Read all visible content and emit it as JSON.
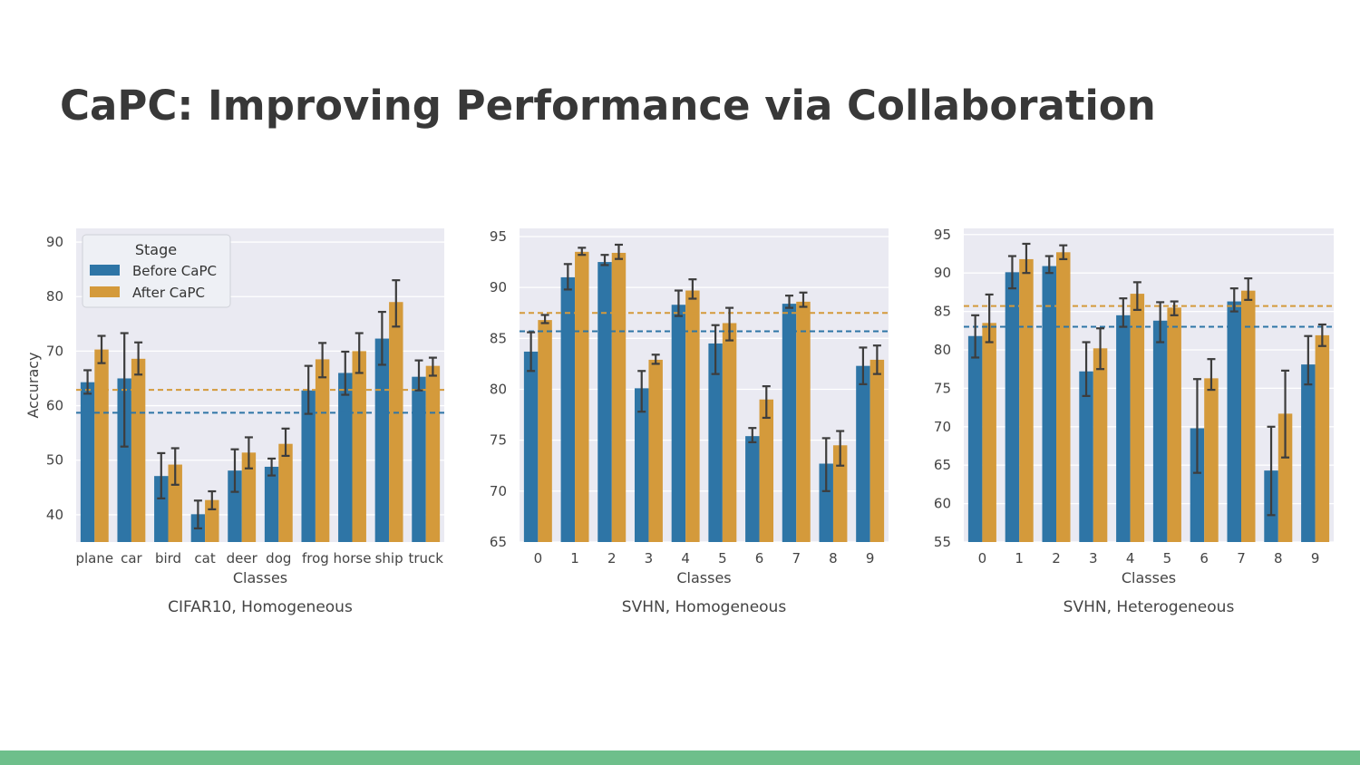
{
  "slide": {
    "title": "CaPC: Improving Performance via Collaboration",
    "footer_color": "#6ebf8b"
  },
  "colors": {
    "before": "#2e75a6",
    "after": "#d49a3b",
    "plot_bg": "#eaeaf2",
    "error_bar": "#3d3d3d"
  },
  "legend": {
    "title": "Stage",
    "entries": [
      "Before CaPC",
      "After CaPC"
    ]
  },
  "chart_data": [
    {
      "type": "bar",
      "caption": "CIFAR10, Homogeneous",
      "xlabel": "Classes",
      "ylabel": "Accuracy",
      "ylim": [
        35,
        92.5
      ],
      "yticks": [
        40,
        50,
        60,
        70,
        80,
        90
      ],
      "categories": [
        "plane",
        "car",
        "bird",
        "cat",
        "deer",
        "dog",
        "frog",
        "horse",
        "ship",
        "truck"
      ],
      "series": [
        {
          "name": "Before CaPC",
          "values": [
            64.3,
            65.0,
            47.1,
            40.1,
            48.1,
            48.8,
            62.8,
            66.0,
            72.3,
            65.3
          ],
          "err_low": [
            62.2,
            52.5,
            43.0,
            37.5,
            44.2,
            47.2,
            58.5,
            62.0,
            67.5,
            62.8
          ],
          "err_high": [
            66.5,
            73.3,
            51.3,
            42.6,
            52.0,
            50.3,
            67.3,
            69.9,
            77.2,
            68.3
          ]
        },
        {
          "name": "After CaPC",
          "values": [
            70.3,
            68.6,
            49.2,
            42.7,
            51.4,
            53.0,
            68.5,
            70.0,
            79.0,
            67.3
          ],
          "err_low": [
            67.8,
            65.7,
            45.5,
            41.0,
            48.5,
            50.8,
            65.2,
            66.0,
            74.5,
            65.5
          ],
          "err_high": [
            72.8,
            71.6,
            52.2,
            44.3,
            54.2,
            55.8,
            71.5,
            73.3,
            83.0,
            68.8
          ]
        }
      ],
      "mean_lines": {
        "Before CaPC": 58.7,
        "After CaPC": 62.9
      },
      "legend_position": "upper-left",
      "grid": true
    },
    {
      "type": "bar",
      "caption": "SVHN, Homogeneous",
      "xlabel": "Classes",
      "ylabel": "",
      "ylim": [
        65,
        95.8
      ],
      "yticks": [
        65,
        70,
        75,
        80,
        85,
        90,
        95
      ],
      "categories": [
        "0",
        "1",
        "2",
        "3",
        "4",
        "5",
        "6",
        "7",
        "8",
        "9"
      ],
      "series": [
        {
          "name": "Before CaPC",
          "values": [
            83.7,
            91.0,
            92.5,
            80.1,
            88.3,
            84.5,
            75.4,
            88.4,
            72.7,
            82.3
          ],
          "err_low": [
            81.8,
            89.8,
            92.2,
            77.8,
            87.2,
            81.5,
            74.8,
            88.0,
            70.0,
            80.5
          ],
          "err_high": [
            85.6,
            92.3,
            93.2,
            81.8,
            89.7,
            86.3,
            76.2,
            89.2,
            75.2,
            84.1
          ]
        },
        {
          "name": "After CaPC",
          "values": [
            86.8,
            93.5,
            93.4,
            82.9,
            89.7,
            86.5,
            79.0,
            88.6,
            74.5,
            82.9
          ],
          "err_low": [
            86.5,
            93.2,
            92.8,
            82.5,
            88.9,
            84.8,
            77.2,
            88.1,
            72.5,
            81.5
          ],
          "err_high": [
            87.3,
            93.9,
            94.2,
            83.4,
            90.8,
            88.0,
            80.3,
            89.5,
            75.9,
            84.3
          ]
        }
      ],
      "mean_lines": {
        "Before CaPC": 85.7,
        "After CaPC": 87.5
      },
      "grid": true
    },
    {
      "type": "bar",
      "caption": "SVHN, Heterogeneous",
      "xlabel": "Classes",
      "ylabel": "",
      "ylim": [
        55,
        95.8
      ],
      "yticks": [
        55,
        60,
        65,
        70,
        75,
        80,
        85,
        90,
        95
      ],
      "categories": [
        "0",
        "1",
        "2",
        "3",
        "4",
        "5",
        "6",
        "7",
        "8",
        "9"
      ],
      "series": [
        {
          "name": "Before CaPC",
          "values": [
            81.8,
            90.1,
            90.9,
            77.2,
            84.5,
            83.8,
            69.8,
            86.3,
            64.3,
            78.1
          ],
          "err_low": [
            79.0,
            88.0,
            90.0,
            74.0,
            83.0,
            81.0,
            64.0,
            85.0,
            58.5,
            75.5
          ],
          "err_high": [
            84.5,
            92.2,
            92.2,
            81.0,
            86.7,
            86.2,
            76.2,
            88.0,
            70.0,
            81.8
          ]
        },
        {
          "name": "After CaPC",
          "values": [
            83.5,
            91.8,
            92.7,
            80.2,
            87.3,
            85.5,
            76.3,
            87.7,
            71.7,
            81.9
          ],
          "err_low": [
            81.0,
            90.0,
            91.8,
            77.5,
            85.2,
            84.5,
            74.8,
            86.5,
            66.0,
            80.5
          ],
          "err_high": [
            87.2,
            93.8,
            93.6,
            82.8,
            88.8,
            86.3,
            78.8,
            89.3,
            77.3,
            83.3
          ]
        }
      ],
      "mean_lines": {
        "Before CaPC": 83.0,
        "After CaPC": 85.7
      },
      "grid": true
    }
  ]
}
